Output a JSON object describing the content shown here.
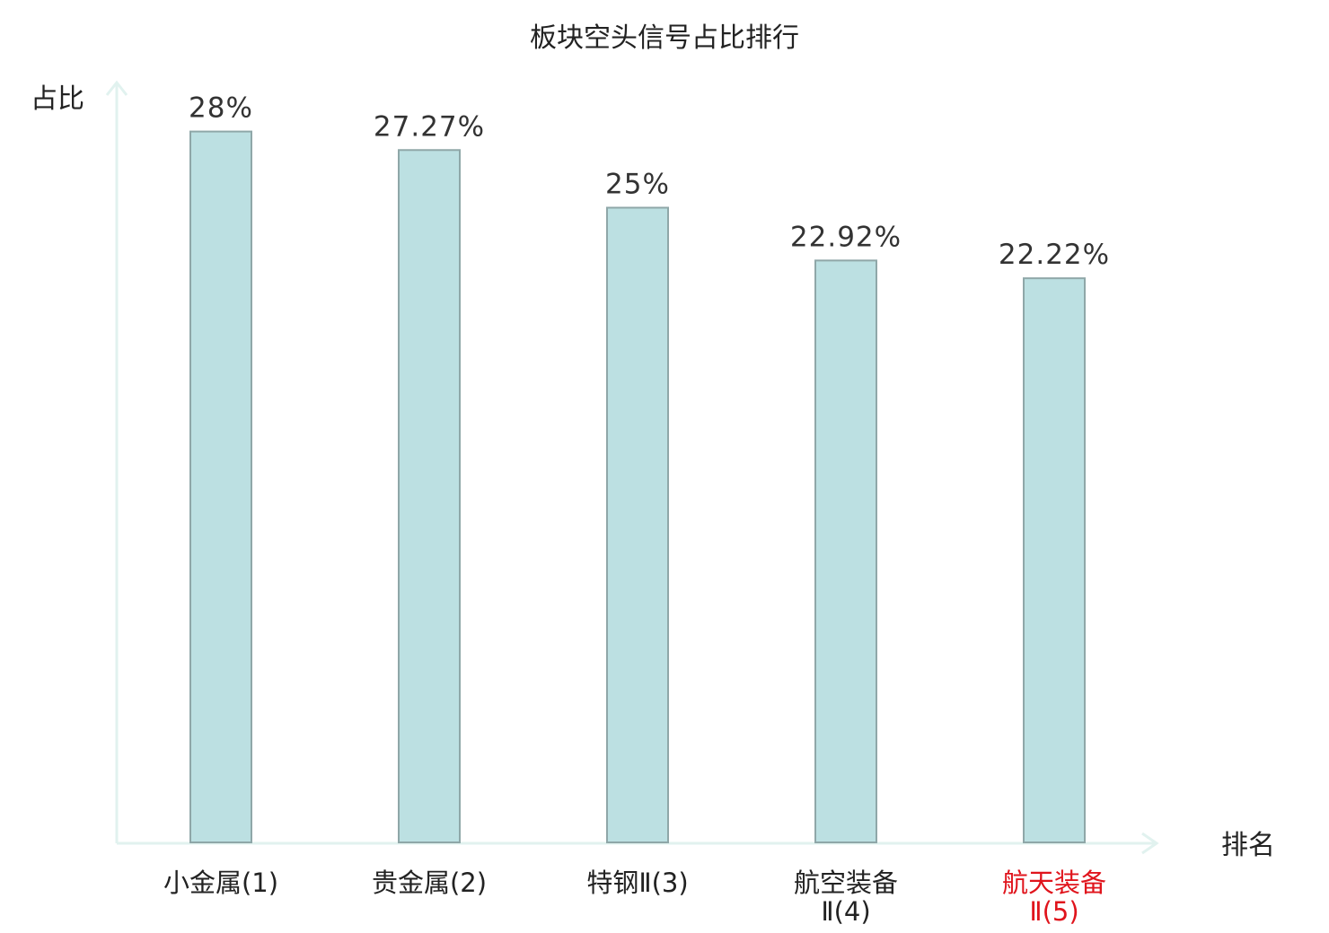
{
  "chart_data": {
    "type": "bar",
    "title": "板块空头信号占比排行",
    "xlabel": "排名",
    "ylabel": "占比",
    "ylim": [
      0,
      30
    ],
    "categories": [
      [
        "小金属(1)"
      ],
      [
        "贵金属(2)"
      ],
      [
        "特钢Ⅱ(3)"
      ],
      [
        "航空装备",
        "Ⅱ(4)"
      ],
      [
        "航天装备",
        "Ⅱ(5)"
      ]
    ],
    "values": [
      28,
      27.27,
      25,
      22.92,
      22.22
    ],
    "value_labels": [
      "28%",
      "27.27%",
      "25%",
      "22.92%",
      "22.22%"
    ],
    "highlight_index": 4,
    "grid": false,
    "colors": {
      "bar_fill": "#bce0e2",
      "bar_stroke": "#8fa7a8",
      "axis": "#e1f2ef",
      "label": "#222222",
      "highlight": "#e0141c"
    }
  }
}
